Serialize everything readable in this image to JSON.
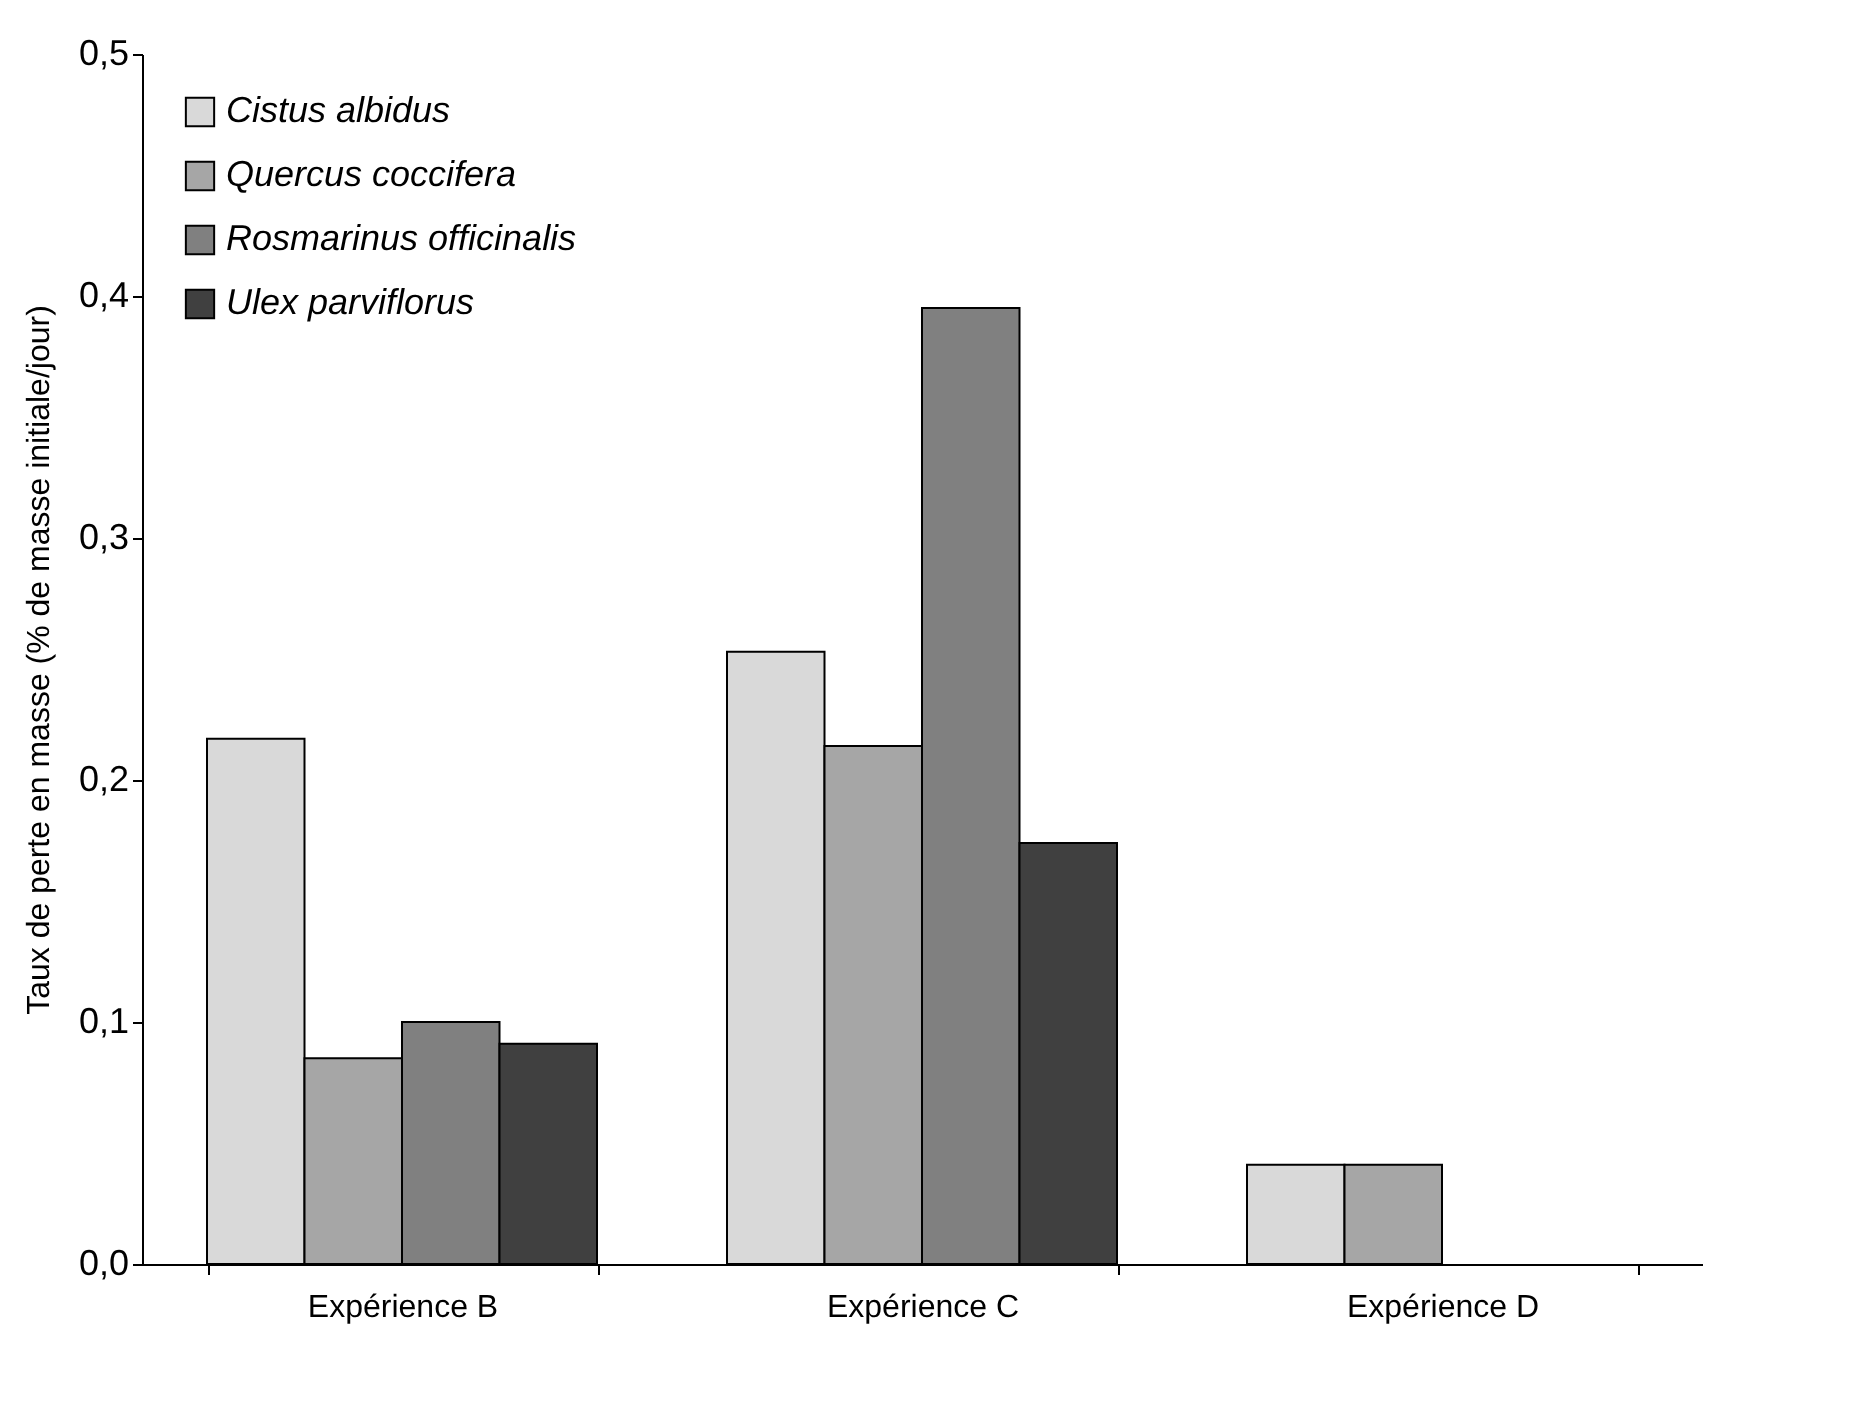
{
  "chart_data": {
    "type": "bar",
    "ylabel": "Taux de perte en masse (% de masse initiale/jour)",
    "categories": [
      "Expérience B",
      "Expérience C",
      "Expérience D"
    ],
    "series": [
      {
        "name": "Cistus albidus",
        "color": "#d9d9d9",
        "values": [
          0.217,
          0.253,
          0.041
        ]
      },
      {
        "name": "Quercus coccifera",
        "color": "#a6a6a6",
        "values": [
          0.085,
          0.214,
          0.041
        ]
      },
      {
        "name": "Rosmarinus officinalis",
        "color": "#808080",
        "values": [
          0.1,
          0.395,
          null
        ]
      },
      {
        "name": "Ulex parviflorus",
        "color": "#404040",
        "values": [
          0.091,
          0.174,
          null
        ]
      }
    ],
    "ylim": [
      0,
      0.5
    ],
    "yticks": [
      {
        "value": 0,
        "label": "0,0"
      },
      {
        "value": 0.1,
        "label": "0,1"
      },
      {
        "value": 0.2,
        "label": "0,2"
      },
      {
        "value": 0.3,
        "label": "0,3"
      },
      {
        "value": 0.4,
        "label": "0,4"
      },
      {
        "value": 0.5,
        "label": "0,5"
      }
    ],
    "grid": false,
    "legend": "top left"
  }
}
